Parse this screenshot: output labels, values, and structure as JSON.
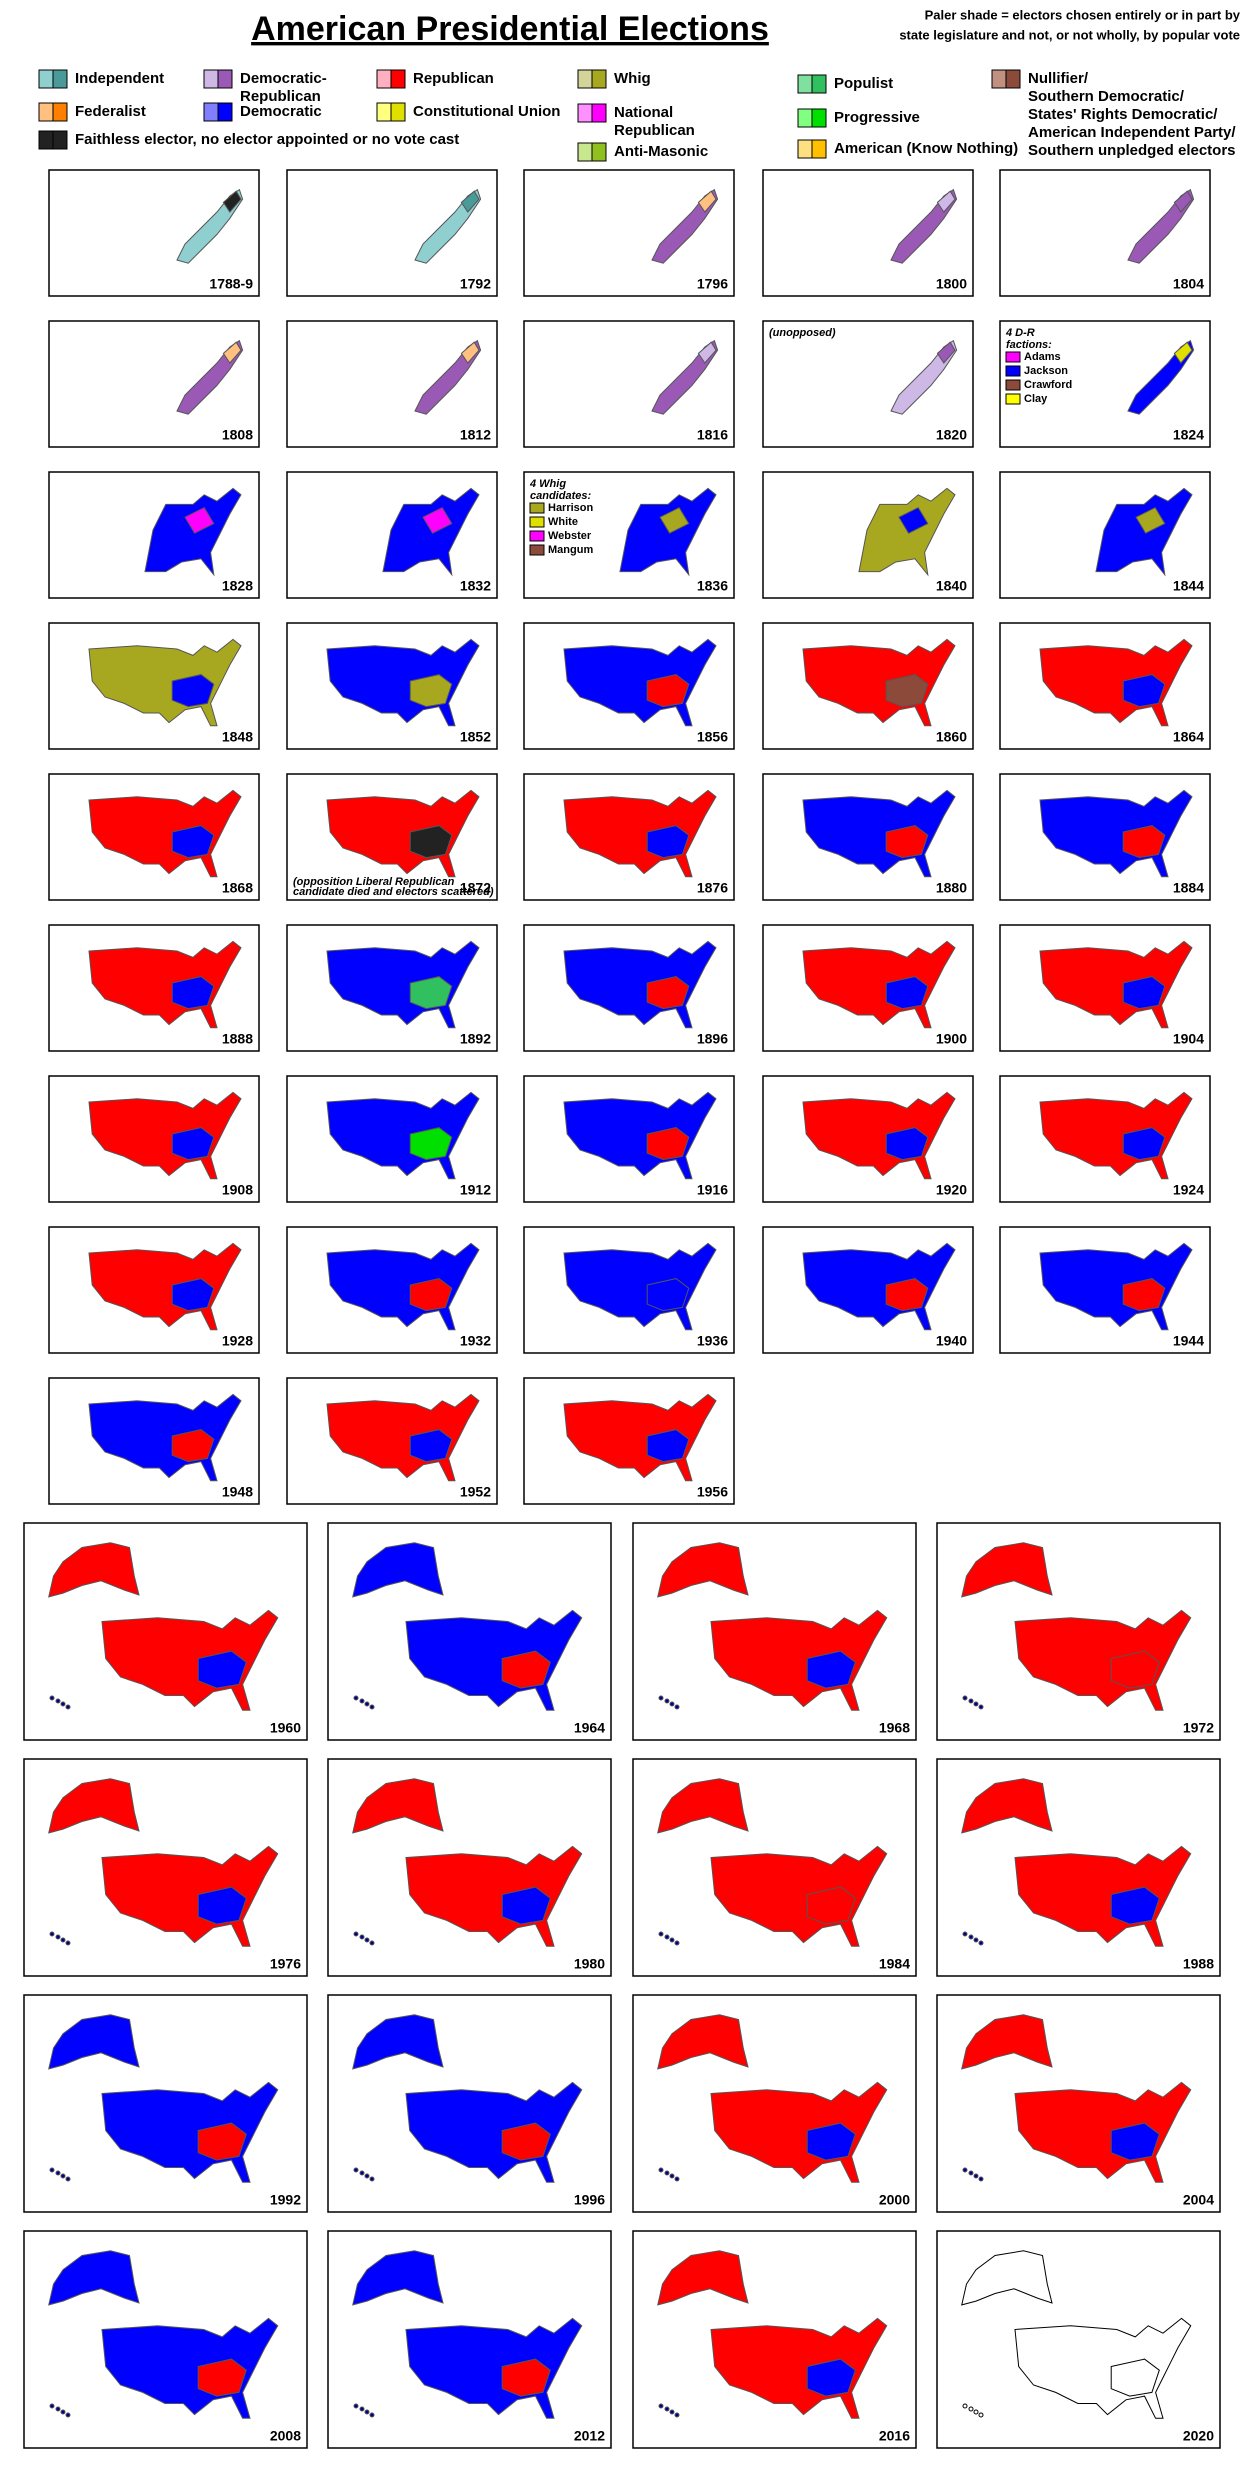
{
  "title": "American Presidential Elections",
  "note": [
    "Paler shade = electors chosen entirely or in part by",
    "state legislature and not, or not wholly, by popular vote"
  ],
  "legend": [
    {
      "label": [
        "Independent"
      ],
      "colors": [
        "#8fcfcf",
        "#4a9a9a"
      ]
    },
    {
      "label": [
        "Democratic-",
        "Republican"
      ],
      "colors": [
        "#cdb8e6",
        "#9b59b6"
      ]
    },
    {
      "label": [
        "Republican"
      ],
      "colors": [
        "#ffb0c0",
        "#ff0000"
      ]
    },
    {
      "label": [
        "Whig"
      ],
      "colors": [
        "#d4d49a",
        "#a8a820"
      ]
    },
    {
      "label": [
        "Populist"
      ],
      "colors": [
        "#80e0a0",
        "#30c060"
      ]
    },
    {
      "label": [
        "Nullifier/",
        "Southern Democratic/",
        "States' Rights Democratic/",
        "American Independent Party/",
        "Southern unpledged electors"
      ],
      "colors": [
        "#c09080",
        "#8b4a3a"
      ]
    },
    {
      "label": [
        "Federalist"
      ],
      "colors": [
        "#ffc080",
        "#ff8000"
      ]
    },
    {
      "label": [
        "Democratic"
      ],
      "colors": [
        "#8080ff",
        "#0000ff"
      ]
    },
    {
      "label": [
        "Constitutional Union"
      ],
      "colors": [
        "#ffff80",
        "#e0e000"
      ]
    },
    {
      "label": [
        "National",
        "Republican"
      ],
      "colors": [
        "#ff90ff",
        "#ff00ff"
      ]
    },
    {
      "label": [
        "Progressive"
      ],
      "colors": [
        "#80ff80",
        "#00e000"
      ]
    },
    {
      "label": [
        "Anti-Masonic"
      ],
      "colors": [
        "#c8e890",
        "#90c020"
      ]
    },
    {
      "label": [
        "American (Know Nothing)"
      ],
      "colors": [
        "#ffe080",
        "#ffc000"
      ]
    },
    {
      "label": [
        "Faithless elector, no elector appointed or no vote cast"
      ],
      "colors": [
        "#222222",
        "#222222"
      ]
    }
  ],
  "panels": [
    {
      "year": "1788-9",
      "colors": [
        "#8fcfcf",
        "#222222"
      ]
    },
    {
      "year": "1792",
      "colors": [
        "#8fcfcf",
        "#4a9a9a"
      ]
    },
    {
      "year": "1796",
      "colors": [
        "#9b59b6",
        "#ffc080"
      ]
    },
    {
      "year": "1800",
      "colors": [
        "#9b59b6",
        "#cdb8e6"
      ]
    },
    {
      "year": "1804",
      "colors": [
        "#9b59b6",
        "#9b59b6"
      ]
    },
    {
      "year": "1808",
      "colors": [
        "#9b59b6",
        "#ffc080"
      ]
    },
    {
      "year": "1812",
      "colors": [
        "#9b59b6",
        "#ffc080"
      ]
    },
    {
      "year": "1816",
      "colors": [
        "#9b59b6",
        "#cdb8e6"
      ]
    },
    {
      "year": "1820",
      "colors": [
        "#cdb8e6",
        "#9b59b6"
      ],
      "annotation": [
        "(unopposed)"
      ]
    },
    {
      "year": "1824",
      "colors": [
        "#0000ff",
        "#e0e000"
      ],
      "annotation": [
        "4 D-R",
        "factions:"
      ],
      "sub_legend": [
        {
          "name": "Adams",
          "color": "#ff00ff"
        },
        {
          "name": "Jackson",
          "color": "#0000ff"
        },
        {
          "name": "Crawford",
          "color": "#8b4a3a"
        },
        {
          "name": "Clay",
          "color": "#ffff00"
        }
      ]
    },
    {
      "year": "1828",
      "colors": [
        "#0000ff",
        "#ff00ff"
      ]
    },
    {
      "year": "1832",
      "colors": [
        "#0000ff",
        "#ff00ff"
      ]
    },
    {
      "year": "1836",
      "colors": [
        "#0000ff",
        "#a8a820"
      ],
      "annotation": [
        "4 Whig",
        "candidates:"
      ],
      "sub_legend": [
        {
          "name": "Harrison",
          "color": "#a8a820"
        },
        {
          "name": "White",
          "color": "#e0e000"
        },
        {
          "name": "Webster",
          "color": "#ff00ff"
        },
        {
          "name": "Mangum",
          "color": "#8b4a3a"
        }
      ]
    },
    {
      "year": "1840",
      "colors": [
        "#a8a820",
        "#0000ff"
      ]
    },
    {
      "year": "1844",
      "colors": [
        "#0000ff",
        "#a8a820"
      ]
    },
    {
      "year": "1848",
      "colors": [
        "#a8a820",
        "#0000ff"
      ]
    },
    {
      "year": "1852",
      "colors": [
        "#0000ff",
        "#a8a820"
      ]
    },
    {
      "year": "1856",
      "colors": [
        "#0000ff",
        "#ff0000"
      ]
    },
    {
      "year": "1860",
      "colors": [
        "#ff0000",
        "#8b4a3a"
      ]
    },
    {
      "year": "1864",
      "colors": [
        "#ff0000",
        "#0000ff"
      ]
    },
    {
      "year": "1868",
      "colors": [
        "#ff0000",
        "#0000ff"
      ]
    },
    {
      "year": "1872",
      "colors": [
        "#ff0000",
        "#222222"
      ],
      "annotation": [
        "(opposition Liberal Republican",
        "candidate died and electors scattered)"
      ]
    },
    {
      "year": "1876",
      "colors": [
        "#ff0000",
        "#0000ff"
      ]
    },
    {
      "year": "1880",
      "colors": [
        "#0000ff",
        "#ff0000"
      ]
    },
    {
      "year": "1884",
      "colors": [
        "#0000ff",
        "#ff0000"
      ]
    },
    {
      "year": "1888",
      "colors": [
        "#ff0000",
        "#0000ff"
      ]
    },
    {
      "year": "1892",
      "colors": [
        "#0000ff",
        "#30c060"
      ]
    },
    {
      "year": "1896",
      "colors": [
        "#0000ff",
        "#ff0000"
      ]
    },
    {
      "year": "1900",
      "colors": [
        "#ff0000",
        "#0000ff"
      ]
    },
    {
      "year": "1904",
      "colors": [
        "#ff0000",
        "#0000ff"
      ]
    },
    {
      "year": "1908",
      "colors": [
        "#ff0000",
        "#0000ff"
      ]
    },
    {
      "year": "1912",
      "colors": [
        "#0000ff",
        "#00e000"
      ]
    },
    {
      "year": "1916",
      "colors": [
        "#0000ff",
        "#ff0000"
      ]
    },
    {
      "year": "1920",
      "colors": [
        "#ff0000",
        "#0000ff"
      ]
    },
    {
      "year": "1924",
      "colors": [
        "#ff0000",
        "#0000ff"
      ]
    },
    {
      "year": "1928",
      "colors": [
        "#ff0000",
        "#0000ff"
      ]
    },
    {
      "year": "1932",
      "colors": [
        "#0000ff",
        "#ff0000"
      ]
    },
    {
      "year": "1936",
      "colors": [
        "#0000ff",
        "#0000ff"
      ]
    },
    {
      "year": "1940",
      "colors": [
        "#0000ff",
        "#ff0000"
      ]
    },
    {
      "year": "1944",
      "colors": [
        "#0000ff",
        "#ff0000"
      ]
    },
    {
      "year": "1948",
      "colors": [
        "#0000ff",
        "#ff0000"
      ]
    },
    {
      "year": "1952",
      "colors": [
        "#ff0000",
        "#0000ff"
      ]
    },
    {
      "year": "1956",
      "colors": [
        "#ff0000",
        "#0000ff"
      ]
    }
  ],
  "large_panels": [
    {
      "year": "1960",
      "colors": [
        "#ff0000",
        "#0000ff"
      ]
    },
    {
      "year": "1964",
      "colors": [
        "#0000ff",
        "#ff0000"
      ]
    },
    {
      "year": "1968",
      "colors": [
        "#ff0000",
        "#0000ff"
      ]
    },
    {
      "year": "1972",
      "colors": [
        "#ff0000",
        "#ff0000"
      ]
    },
    {
      "year": "1976",
      "colors": [
        "#ff0000",
        "#0000ff"
      ]
    },
    {
      "year": "1980",
      "colors": [
        "#ff0000",
        "#0000ff"
      ]
    },
    {
      "year": "1984",
      "colors": [
        "#ff0000",
        "#ff0000"
      ]
    },
    {
      "year": "1988",
      "colors": [
        "#ff0000",
        "#0000ff"
      ]
    },
    {
      "year": "1992",
      "colors": [
        "#0000ff",
        "#ff0000"
      ]
    },
    {
      "year": "1996",
      "colors": [
        "#0000ff",
        "#ff0000"
      ]
    },
    {
      "year": "2000",
      "colors": [
        "#ff0000",
        "#0000ff"
      ]
    },
    {
      "year": "2004",
      "colors": [
        "#ff0000",
        "#0000ff"
      ]
    },
    {
      "year": "2008",
      "colors": [
        "#0000ff",
        "#ff0000"
      ]
    },
    {
      "year": "2012",
      "colors": [
        "#0000ff",
        "#ff0000"
      ]
    },
    {
      "year": "2016",
      "colors": [
        "#ff0000",
        "#0000ff"
      ]
    },
    {
      "year": "2020",
      "colors": [
        "#ffffff",
        "#ffffff"
      ]
    }
  ]
}
